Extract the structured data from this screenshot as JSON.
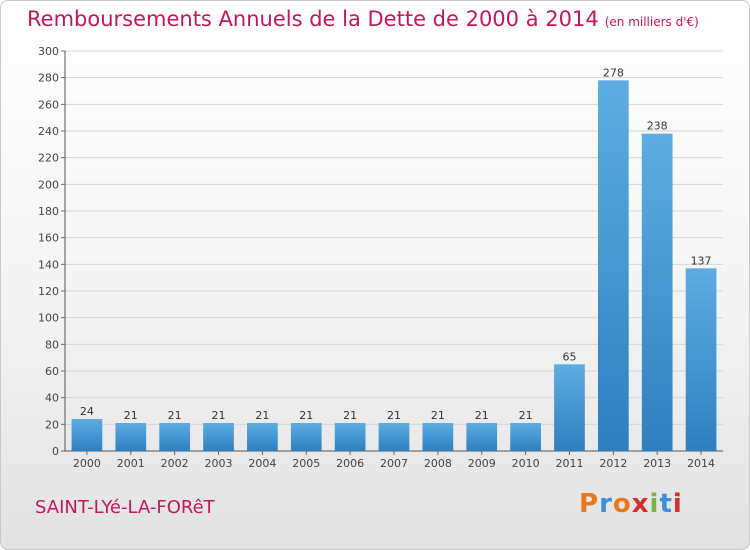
{
  "title": "Remboursements Annuels de la Dette de 2000 à 2014",
  "unit": "(en milliers d'€)",
  "place": "SAINT-LYé-LA-FORêT",
  "logo": {
    "letters": [
      "P",
      "r",
      "o",
      "x",
      "i",
      "t",
      "i"
    ],
    "colors": [
      "#e8781e",
      "#3f8fd6",
      "#e8781e",
      "#d32f2f",
      "#7cb342",
      "#3f8fd6",
      "#d32f2f"
    ]
  },
  "colors": {
    "title": "#c2185b",
    "bar_light": "#5dade2",
    "bar_dark": "#2e7fc0",
    "grid": "#d6d6d6"
  },
  "chart_data": {
    "type": "bar",
    "categories": [
      "2000",
      "2001",
      "2002",
      "2003",
      "2004",
      "2005",
      "2006",
      "2007",
      "2008",
      "2009",
      "2010",
      "2011",
      "2012",
      "2013",
      "2014"
    ],
    "values": [
      24,
      21,
      21,
      21,
      21,
      21,
      21,
      21,
      21,
      21,
      21,
      65,
      278,
      238,
      137
    ],
    "ylim": [
      0,
      300
    ],
    "yticks": [
      0,
      20,
      40,
      60,
      80,
      100,
      120,
      140,
      160,
      180,
      200,
      220,
      240,
      260,
      280,
      300
    ],
    "grid": true
  }
}
